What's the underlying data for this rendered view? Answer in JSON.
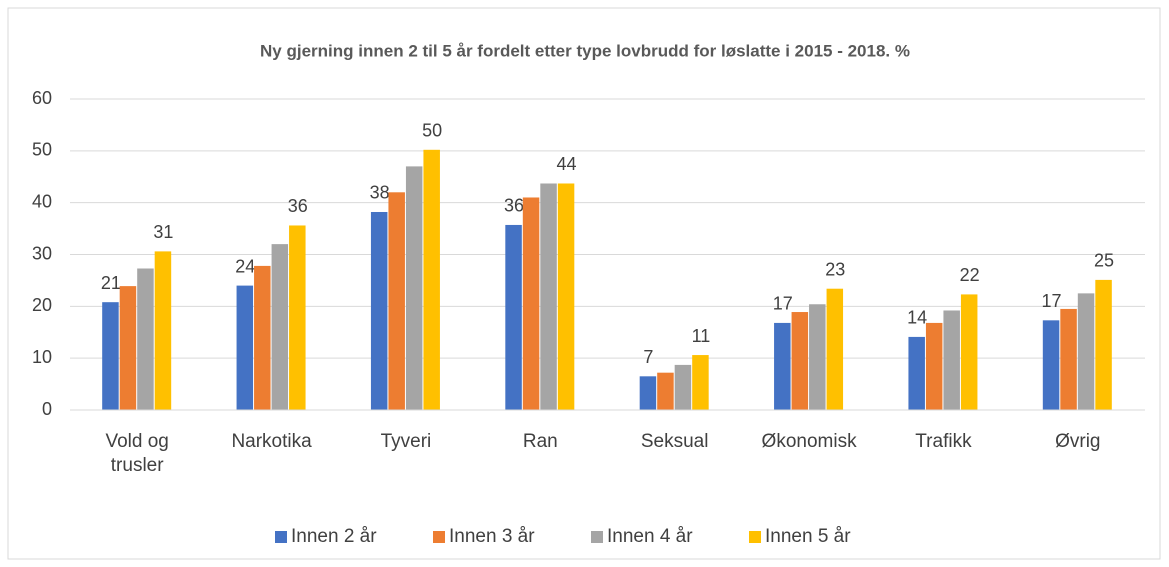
{
  "chart_data": {
    "type": "bar",
    "title": "Ny gjerning innen 2  til 5 år fordelt etter type lovbrudd for løslatte i  2015 - 2018. %",
    "categories": [
      "Vold og trusler",
      "Narkotika",
      "Tyveri",
      "Ran",
      "Seksual",
      "Økonomisk",
      "Trafikk",
      "Øvrig"
    ],
    "series": [
      {
        "name": "Innen 2 år",
        "color": "#4472c4",
        "values": [
          20.8,
          24,
          38.2,
          35.7,
          6.5,
          16.8,
          14.1,
          17.3
        ],
        "value_labels": [
          "21",
          "24",
          "38",
          "36",
          "7",
          "17",
          "14",
          "17"
        ]
      },
      {
        "name": "Innen 3 år",
        "color": "#ed7d31",
        "values": [
          23.9,
          27.8,
          42,
          41,
          7.2,
          18.9,
          16.8,
          19.5
        ]
      },
      {
        "name": "Innen 4 år",
        "color": "#a5a5a5",
        "values": [
          27.3,
          32,
          47,
          43.7,
          8.7,
          20.4,
          19.2,
          22.5
        ]
      },
      {
        "name": "Innen 5 år",
        "color": "#ffc000",
        "values": [
          30.6,
          35.6,
          50.2,
          43.7,
          10.6,
          23.4,
          22.3,
          25.1
        ],
        "value_labels": [
          "31",
          "36",
          "50",
          "44",
          "11",
          "23",
          "22",
          "25"
        ]
      }
    ],
    "ylim": [
      0,
      60
    ],
    "yticks": [
      0,
      10,
      20,
      30,
      40,
      50,
      60
    ],
    "grid": true,
    "legend": "bottom"
  }
}
